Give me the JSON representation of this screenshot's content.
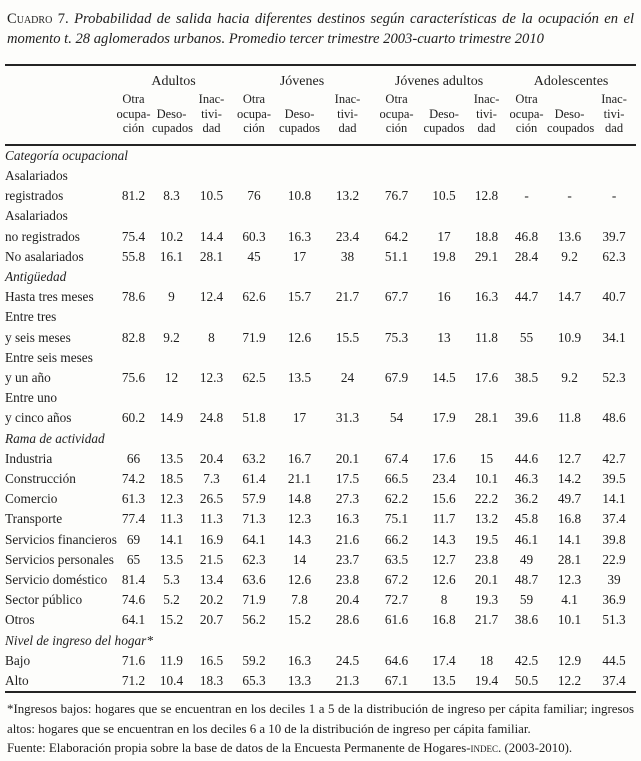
{
  "title": {
    "label": "Cuadro 7.",
    "text": "Probabilidad de salida hacia diferentes destinos según características de la ocupación en el momento t. 28 aglomerados urbanos. Promedio tercer trimestre 2003-cuarto trimestre 2010"
  },
  "table": {
    "groups": [
      {
        "label": "Adultos"
      },
      {
        "label": "Jóvenes"
      },
      {
        "label": "Jóvenes adultos"
      },
      {
        "label": "Adolescentes"
      }
    ],
    "columns": [
      "Otra\nocupa-\nción",
      "Deso-\ncupados",
      "Inac-\ntivi-\ndad",
      "Otra\nocupa-\nción",
      "Deso-\ncupados",
      "Inac-\ntivi-\ndad",
      "Otra\nocupa-\nción",
      "Deso-\ncupados",
      "Inac-\ntivi-\ndad",
      "Otra\nocupa-\nción",
      "Deso-\ncoupados",
      "Inac-\ntivi-\ndad"
    ],
    "rows": [
      {
        "type": "section",
        "label": "Categoría ocupacional"
      },
      {
        "type": "data",
        "label": "Asalariados\nregistrados",
        "values": [
          "81.2",
          "8.3",
          "10.5",
          "76",
          "10.8",
          "13.2",
          "76.7",
          "10.5",
          "12.8",
          "-",
          "-",
          "-"
        ]
      },
      {
        "type": "data",
        "label": "Asalariados\nno registrados",
        "values": [
          "75.4",
          "10.2",
          "14.4",
          "60.3",
          "16.3",
          "23.4",
          "64.2",
          "17",
          "18.8",
          "46.8",
          "13.6",
          "39.7"
        ]
      },
      {
        "type": "data",
        "label": "No asalariados",
        "values": [
          "55.8",
          "16.1",
          "28.1",
          "45",
          "17",
          "38",
          "51.1",
          "19.8",
          "29.1",
          "28.4",
          "9.2",
          "62.3"
        ]
      },
      {
        "type": "section",
        "label": "Antigüedad"
      },
      {
        "type": "data",
        "label": "Hasta tres meses",
        "values": [
          "78.6",
          "9",
          "12.4",
          "62.6",
          "15.7",
          "21.7",
          "67.7",
          "16",
          "16.3",
          "44.7",
          "14.7",
          "40.7"
        ]
      },
      {
        "type": "data",
        "label": "Entre tres\ny seis meses",
        "values": [
          "82.8",
          "9.2",
          "8",
          "71.9",
          "12.6",
          "15.5",
          "75.3",
          "13",
          "11.8",
          "55",
          "10.9",
          "34.1"
        ]
      },
      {
        "type": "data",
        "label": "Entre seis meses\ny un año",
        "values": [
          "75.6",
          "12",
          "12.3",
          "62.5",
          "13.5",
          "24",
          "67.9",
          "14.5",
          "17.6",
          "38.5",
          "9.2",
          "52.3"
        ]
      },
      {
        "type": "data",
        "label": "Entre uno\ny cinco años",
        "values": [
          "60.2",
          "14.9",
          "24.8",
          "51.8",
          "17",
          "31.3",
          "54",
          "17.9",
          "28.1",
          "39.6",
          "11.8",
          "48.6"
        ]
      },
      {
        "type": "section",
        "label": "Rama de actividad"
      },
      {
        "type": "data",
        "label": "Industria",
        "values": [
          "66",
          "13.5",
          "20.4",
          "63.2",
          "16.7",
          "20.1",
          "67.4",
          "17.6",
          "15",
          "44.6",
          "12.7",
          "42.7"
        ]
      },
      {
        "type": "data",
        "label": "Construcción",
        "values": [
          "74.2",
          "18.5",
          "7.3",
          "61.4",
          "21.1",
          "17.5",
          "66.5",
          "23.4",
          "10.1",
          "46.3",
          "14.2",
          "39.5"
        ]
      },
      {
        "type": "data",
        "label": "Comercio",
        "values": [
          "61.3",
          "12.3",
          "26.5",
          "57.9",
          "14.8",
          "27.3",
          "62.2",
          "15.6",
          "22.2",
          "36.2",
          "49.7",
          "14.1"
        ]
      },
      {
        "type": "data",
        "label": "Transporte",
        "values": [
          "77.4",
          "11.3",
          "11.3",
          "71.3",
          "12.3",
          "16.3",
          "75.1",
          "11.7",
          "13.2",
          "45.8",
          "16.8",
          "37.4"
        ]
      },
      {
        "type": "data",
        "label": "Servicios financieros",
        "values": [
          "69",
          "14.1",
          "16.9",
          "64.1",
          "14.3",
          "21.6",
          "66.2",
          "14.3",
          "19.5",
          "46.1",
          "14.1",
          "39.8"
        ]
      },
      {
        "type": "data",
        "label": "Servicios personales",
        "values": [
          "65",
          "13.5",
          "21.5",
          "62.3",
          "14",
          "23.7",
          "63.5",
          "12.7",
          "23.8",
          "49",
          "28.1",
          "22.9"
        ]
      },
      {
        "type": "data",
        "label": "Servicio doméstico",
        "values": [
          "81.4",
          "5.3",
          "13.4",
          "63.6",
          "12.6",
          "23.8",
          "67.2",
          "12.6",
          "20.1",
          "48.7",
          "12.3",
          "39"
        ]
      },
      {
        "type": "data",
        "label": "Sector público",
        "values": [
          "74.6",
          "5.2",
          "20.2",
          "71.9",
          "7.8",
          "20.4",
          "72.7",
          "8",
          "19.3",
          "59",
          "4.1",
          "36.9"
        ]
      },
      {
        "type": "data",
        "label": "Otros",
        "values": [
          "64.1",
          "15.2",
          "20.7",
          "56.2",
          "15.2",
          "28.6",
          "61.6",
          "16.8",
          "21.7",
          "38.6",
          "10.1",
          "51.3"
        ]
      },
      {
        "type": "section",
        "label": "Nivel de ingreso del hogar*"
      },
      {
        "type": "data",
        "label": "Bajo",
        "values": [
          "71.6",
          "11.9",
          "16.5",
          "59.2",
          "16.3",
          "24.5",
          "64.6",
          "17.4",
          "18",
          "42.5",
          "12.9",
          "44.5"
        ]
      },
      {
        "type": "data",
        "label": "Alto",
        "values": [
          "71.2",
          "10.4",
          "18.3",
          "65.3",
          "13.3",
          "21.3",
          "67.1",
          "13.5",
          "19.4",
          "50.5",
          "12.2",
          "37.4"
        ]
      }
    ]
  },
  "footnotes": {
    "note": "*Ingresos bajos: hogares que se encuentran en los deciles 1 a 5 de la distribución de ingreso per cápita familiar; ingresos altos: hogares que se encuentran en los deciles 6 a 10 de la distribución de ingreso per cápita familiar.",
    "source_label": "Fuente:",
    "source_text": "Elaboración propia sobre la base de datos de la Encuesta Permanente de Hogares-",
    "source_smallcaps": "indec",
    "source_tail": ". (2003-2010)."
  }
}
